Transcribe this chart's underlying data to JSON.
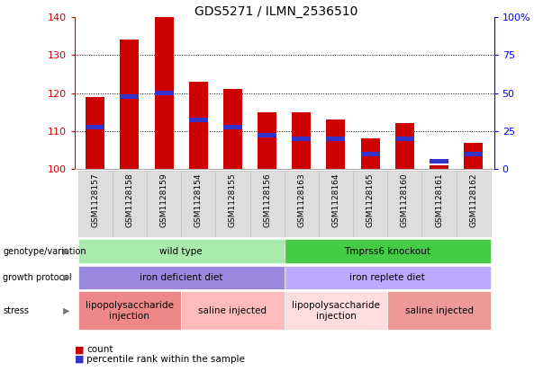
{
  "title": "GDS5271 / ILMN_2536510",
  "samples": [
    "GSM1128157",
    "GSM1128158",
    "GSM1128159",
    "GSM1128154",
    "GSM1128155",
    "GSM1128156",
    "GSM1128163",
    "GSM1128164",
    "GSM1128165",
    "GSM1128160",
    "GSM1128161",
    "GSM1128162"
  ],
  "count_values": [
    119,
    134,
    140,
    123,
    121,
    115,
    115,
    113,
    108,
    112,
    101,
    107
  ],
  "percentile_values": [
    111,
    119,
    120,
    113,
    111,
    109,
    108,
    108,
    104,
    108,
    102,
    104
  ],
  "y_min": 100,
  "y_max": 140,
  "y_ticks": [
    100,
    110,
    120,
    130,
    140
  ],
  "y2_ticks": [
    0,
    25,
    50,
    75,
    100
  ],
  "bar_color": "#cc0000",
  "percentile_color": "#3333cc",
  "bar_width": 0.55,
  "genotype_groups": [
    {
      "text": "wild type",
      "start": 0,
      "end": 6,
      "color": "#aaeaaa"
    },
    {
      "text": "Tmprss6 knockout",
      "start": 6,
      "end": 12,
      "color": "#44cc44"
    }
  ],
  "protocol_groups": [
    {
      "text": "iron deficient diet",
      "start": 0,
      "end": 6,
      "color": "#9988dd"
    },
    {
      "text": "iron replete diet",
      "start": 6,
      "end": 12,
      "color": "#bbaaff"
    }
  ],
  "stress_groups": [
    {
      "text": "lipopolysaccharide\ninjection",
      "start": 0,
      "end": 3,
      "color": "#ee8888"
    },
    {
      "text": "saline injected",
      "start": 3,
      "end": 6,
      "color": "#ffbbbb"
    },
    {
      "text": "lipopolysaccharide\ninjection",
      "start": 6,
      "end": 9,
      "color": "#ffdddd"
    },
    {
      "text": "saline injected",
      "start": 9,
      "end": 12,
      "color": "#ee9999"
    }
  ],
  "row_labels": [
    "genotype/variation",
    "growth protocol",
    "stress"
  ]
}
